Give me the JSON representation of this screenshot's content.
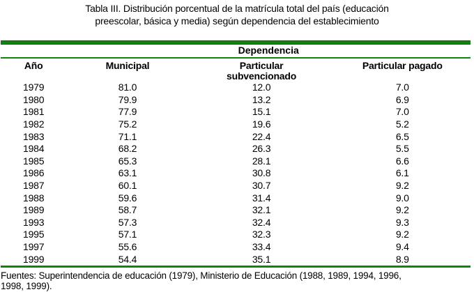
{
  "title": {
    "lines": [
      "Tabla III. Distribución porcentual de la matrícula total del país (educación",
      "preescolar, básica y media) según dependencia del establecimiento"
    ]
  },
  "table": {
    "group_header": "Dependencia",
    "columns": [
      "Año",
      "Municipal",
      "Particular subvencionado",
      "Particular pagado"
    ],
    "rows": [
      [
        "1979",
        "81.0",
        "12.0",
        "7.0"
      ],
      [
        "1980",
        "79.9",
        "13.2",
        "6.9"
      ],
      [
        "1981",
        "77.9",
        "15.1",
        "7.0"
      ],
      [
        "1982",
        "75.2",
        "19.6",
        "5.2"
      ],
      [
        "1983",
        "71.1",
        "22.4",
        "6.5"
      ],
      [
        "1984",
        "68.2",
        "26.3",
        "5.5"
      ],
      [
        "1985",
        "65.3",
        "28.1",
        "6.6"
      ],
      [
        "1986",
        "63.1",
        "30.8",
        "6.1"
      ],
      [
        "1987",
        "60.1",
        "30.7",
        "9.2"
      ],
      [
        "1988",
        "59.6",
        "31.4",
        "9.0"
      ],
      [
        "1989",
        "58.7",
        "32.1",
        "9.2"
      ],
      [
        "1993",
        "57.3",
        "32.4",
        "9.3"
      ],
      [
        "1995",
        "57.1",
        "32.3",
        "9.2"
      ],
      [
        "1997",
        "55.6",
        "33.4",
        "9.4"
      ],
      [
        "1999",
        "54.4",
        "35.1",
        "8.9"
      ]
    ]
  },
  "footer": {
    "lines": [
      "Fuentes: Superintendencia de educación (1979), Ministerio de Educación (1988, 1989, 1994, 1996,",
      "1998, 1999)."
    ]
  },
  "colors": {
    "rule_green": "#0c860c",
    "text": "#000000"
  }
}
